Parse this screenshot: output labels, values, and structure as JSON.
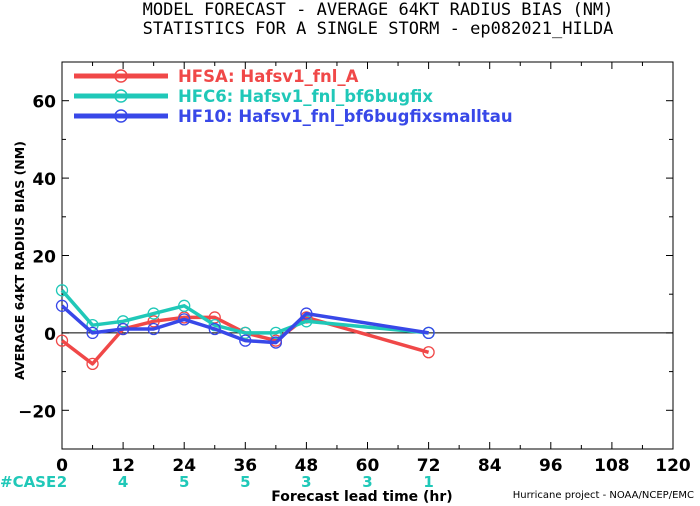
{
  "chart_data": {
    "type": "line",
    "title": "MODEL FORECAST - AVERAGE 64KT RADIUS BIAS (NM)",
    "subtitle": "STATISTICS FOR A SINGLE STORM - ep082021_HILDA",
    "xlabel": "Forecast lead time (hr)",
    "ylabel": "AVERAGE 64KT RADIUS BIAS (NM)",
    "xlim": [
      0,
      120
    ],
    "ylim": [
      -30,
      70
    ],
    "xticks": [
      0,
      12,
      24,
      36,
      48,
      60,
      72,
      84,
      96,
      108,
      120
    ],
    "yticks": [
      -20,
      0,
      20,
      40,
      60
    ],
    "legend_position": "top-left",
    "series": [
      {
        "name": "HFSA: Hafsv1_fnl_A",
        "color": "#f04848",
        "x": [
          0,
          6,
          12,
          18,
          24,
          30,
          36,
          42,
          48,
          72
        ],
        "y": [
          -2,
          -8,
          1,
          3,
          4,
          4,
          0,
          -2,
          4,
          -5
        ]
      },
      {
        "name": "HFC6: Hafsv1_fnl_bf6bugfix",
        "color": "#20c8b8",
        "x": [
          0,
          6,
          12,
          18,
          24,
          30,
          36,
          42,
          48,
          72
        ],
        "y": [
          11,
          2,
          3,
          5,
          7,
          2,
          0,
          0,
          3,
          0
        ]
      },
      {
        "name": "HF10: Hafsv1_fnl_bf6bugfixsmalltau",
        "color": "#3848e8",
        "x": [
          0,
          6,
          12,
          18,
          24,
          30,
          36,
          42,
          48,
          72
        ],
        "y": [
          7,
          0,
          1,
          1,
          3.5,
          1,
          -2,
          -2.5,
          5,
          0
        ]
      }
    ],
    "cases": {
      "label": "#CASE",
      "color": "#20c8b8",
      "entries": [
        {
          "x": 0,
          "n": "2"
        },
        {
          "x": 12,
          "n": "4"
        },
        {
          "x": 24,
          "n": "5"
        },
        {
          "x": 36,
          "n": "5"
        },
        {
          "x": 48,
          "n": "3"
        },
        {
          "x": 60,
          "n": "3"
        },
        {
          "x": 72,
          "n": "1"
        }
      ]
    }
  },
  "credit": "Hurricane project - NOAA/NCEP/EMC"
}
